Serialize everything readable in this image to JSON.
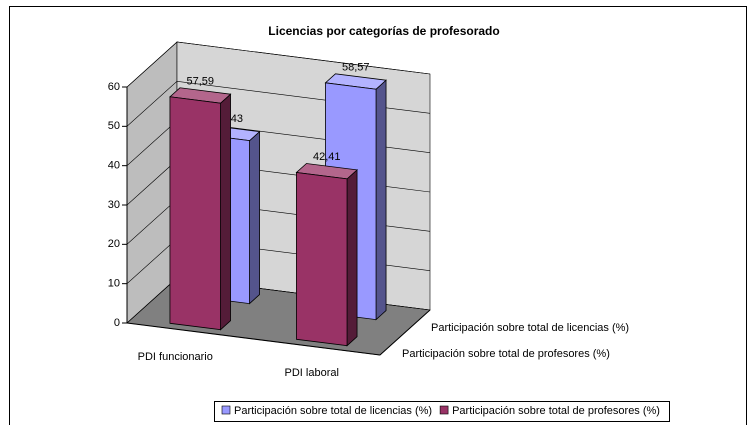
{
  "chart_data": {
    "type": "bar3d",
    "title": "Licencias por categorías de profesorado",
    "categories": [
      "PDI funcionario",
      "PDI laboral"
    ],
    "series": [
      {
        "name": "Participación sobre total de licencias (%)",
        "color": "#9999ff",
        "values": [
          41.43,
          58.57
        ],
        "value_labels": [
          "41,43",
          "58,57"
        ]
      },
      {
        "name": "Participación sobre total de profesores (%)",
        "color": "#993366",
        "values": [
          57.59,
          42.41
        ],
        "value_labels": [
          "57,59",
          "42,41"
        ]
      }
    ],
    "ylim": [
      0,
      60
    ],
    "yticks": [
      0,
      10,
      20,
      30,
      40,
      50,
      60
    ],
    "grid": true,
    "legend": "bottom"
  }
}
